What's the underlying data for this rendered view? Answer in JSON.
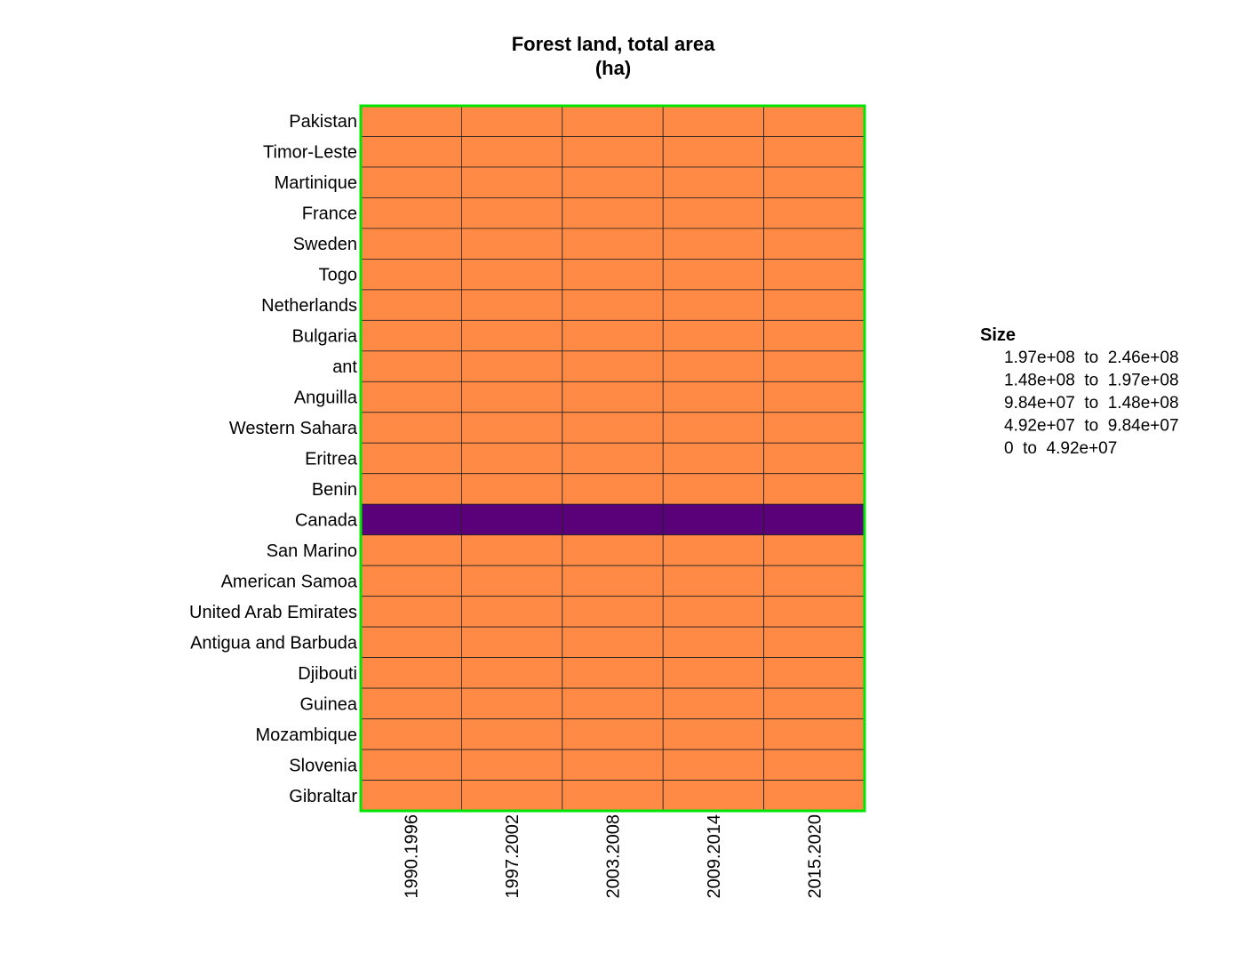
{
  "chart_data": {
    "type": "heatmap",
    "title": [
      "Forest land, total area",
      "(ha)"
    ],
    "rows": [
      "Pakistan",
      "Timor-Leste",
      "Martinique",
      "France",
      "Sweden",
      "Togo",
      "Netherlands",
      "Bulgaria",
      "ant",
      "Anguilla",
      "Western Sahara",
      "Eritrea",
      "Benin",
      "Canada",
      "San Marino",
      "American Samoa",
      "United Arab Emirates",
      "Antigua and Barbuda",
      "Djibouti",
      "Guinea",
      "Mozambique",
      "Slovenia",
      "Gibraltar"
    ],
    "columns": [
      "1990.1996",
      "1997.2002",
      "2003.2008",
      "2009.2014",
      "2015.2020"
    ],
    "bins": [
      {
        "range": [
          0,
          49200000.0
        ],
        "color": "#FF8A45"
      },
      {
        "range": [
          49200000.0,
          98400000.0
        ]
      },
      {
        "range": [
          98400000.0,
          148000000.0
        ]
      },
      {
        "range": [
          148000000.0,
          197000000.0
        ]
      },
      {
        "range": [
          197000000.0,
          246000000.0
        ],
        "color": "#5A0078"
      }
    ],
    "values": [
      [
        0,
        0,
        0,
        0,
        0
      ],
      [
        0,
        0,
        0,
        0,
        0
      ],
      [
        0,
        0,
        0,
        0,
        0
      ],
      [
        0,
        0,
        0,
        0,
        0
      ],
      [
        0,
        0,
        0,
        0,
        0
      ],
      [
        0,
        0,
        0,
        0,
        0
      ],
      [
        0,
        0,
        0,
        0,
        0
      ],
      [
        0,
        0,
        0,
        0,
        0
      ],
      [
        0,
        0,
        0,
        0,
        0
      ],
      [
        0,
        0,
        0,
        0,
        0
      ],
      [
        0,
        0,
        0,
        0,
        0
      ],
      [
        0,
        0,
        0,
        0,
        0
      ],
      [
        0,
        0,
        0,
        0,
        0
      ],
      [
        4,
        4,
        4,
        4,
        4
      ],
      [
        0,
        0,
        0,
        0,
        0
      ],
      [
        0,
        0,
        0,
        0,
        0
      ],
      [
        0,
        0,
        0,
        0,
        0
      ],
      [
        0,
        0,
        0,
        0,
        0
      ],
      [
        0,
        0,
        0,
        0,
        0
      ],
      [
        0,
        0,
        0,
        0,
        0
      ],
      [
        0,
        0,
        0,
        0,
        0
      ],
      [
        0,
        0,
        0,
        0,
        0
      ],
      [
        0,
        0,
        0,
        0,
        0
      ]
    ],
    "border_color": "#00E600",
    "legend": {
      "title": "Size",
      "entries": [
        "1.97e+08  to  2.46e+08",
        "1.48e+08  to  1.97e+08",
        "9.84e+07  to  1.48e+08",
        "4.92e+07  to  9.84e+07",
        "0  to  4.92e+07"
      ]
    }
  }
}
